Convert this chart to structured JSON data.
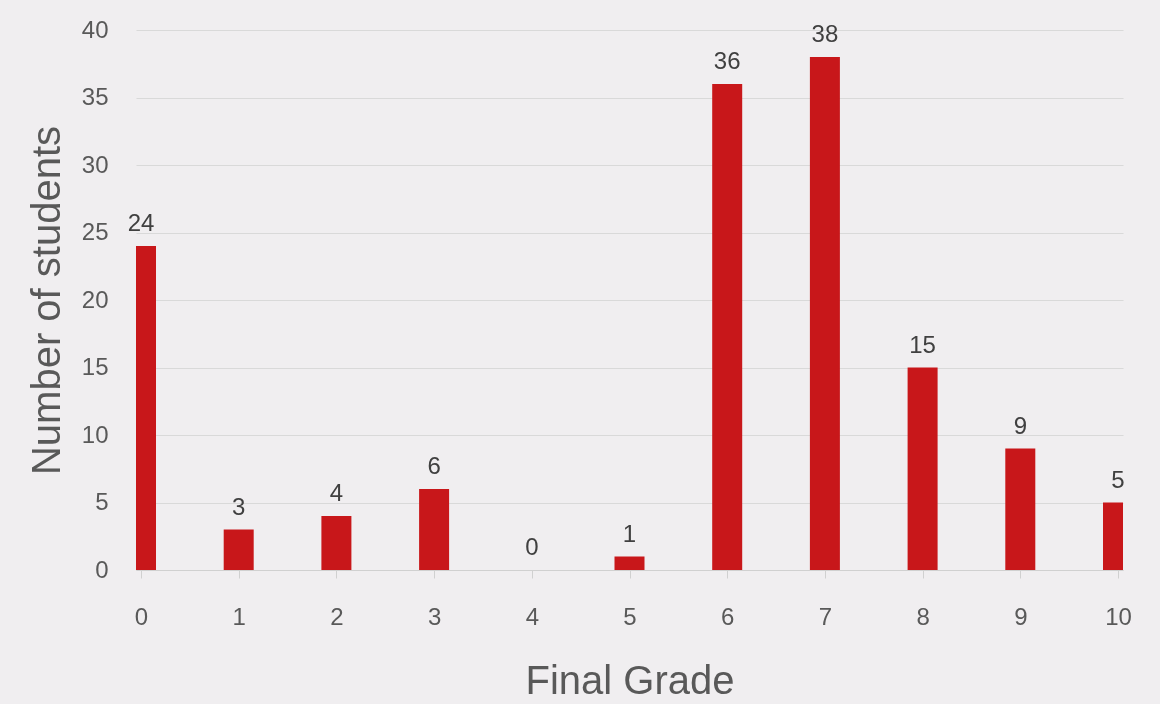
{
  "chart_data": {
    "type": "bar",
    "xlabel": "Final Grade",
    "ylabel": "Number of students",
    "x": [
      0,
      1,
      2,
      3,
      4,
      5,
      6,
      7,
      8,
      9,
      10
    ],
    "series": [
      {
        "color": "#c8171a",
        "values": [
          24,
          3,
          4,
          6,
          0,
          1,
          36,
          38,
          15,
          9,
          5
        ]
      }
    ],
    "xlim": [
      0,
      10
    ],
    "xticks": [
      0,
      1,
      2,
      3,
      4,
      5,
      6,
      7,
      8,
      9,
      10
    ],
    "ylim": [
      0,
      40
    ],
    "yticks": [
      0,
      5,
      10,
      15,
      20,
      25,
      30,
      35,
      40
    ],
    "grid": "y",
    "data_labels": true
  }
}
